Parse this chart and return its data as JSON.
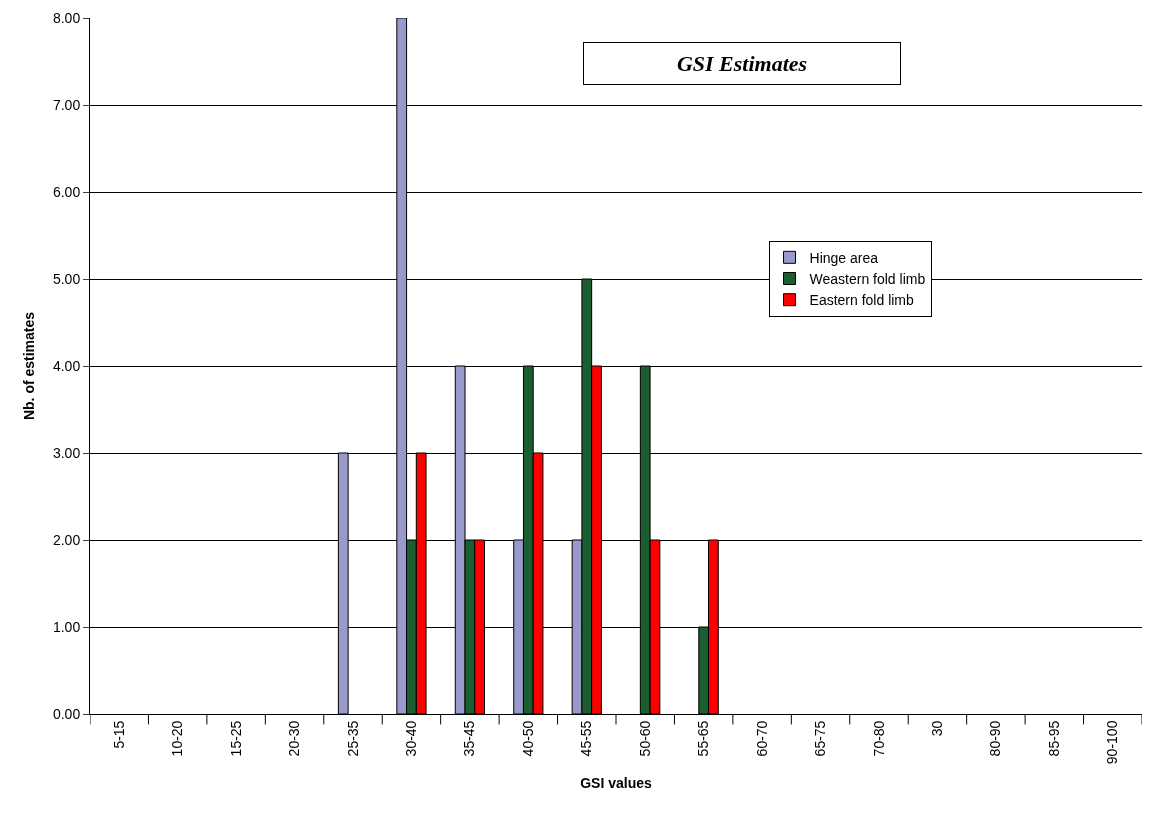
{
  "chart_data": {
    "type": "bar",
    "title": "GSI Estimates",
    "xlabel": "GSI values",
    "ylabel": "Nb. of estimates",
    "categories": [
      "5-15",
      "10-20",
      "15-25",
      "20-30",
      "25-35",
      "30-40",
      "35-45",
      "40-50",
      "45-55",
      "50-60",
      "55-65",
      "60-70",
      "65-75",
      "70-80",
      "30",
      "80-90",
      "85-95",
      "90-100"
    ],
    "series": [
      {
        "name": "Hinge area",
        "color": "#9999cc",
        "values": [
          null,
          null,
          null,
          null,
          3,
          8,
          4,
          2,
          2,
          null,
          null,
          null,
          null,
          null,
          null,
          null,
          null,
          null
        ]
      },
      {
        "name": "Weastern fold limb",
        "color": "#1b5e30",
        "values": [
          null,
          null,
          null,
          null,
          null,
          2,
          2,
          4,
          5,
          4,
          1,
          null,
          null,
          null,
          null,
          null,
          null,
          null
        ]
      },
      {
        "name": "Eastern fold limb",
        "color": "#ff0000",
        "values": [
          null,
          null,
          null,
          null,
          null,
          3,
          2,
          3,
          4,
          2,
          2,
          null,
          null,
          null,
          null,
          null,
          null,
          null
        ]
      }
    ],
    "ylim": [
      0,
      8
    ],
    "yticks": [
      {
        "value": 0,
        "label": "0.00"
      },
      {
        "value": 1,
        "label": "1.00"
      },
      {
        "value": 2,
        "label": "2.00"
      },
      {
        "value": 3,
        "label": "3.00"
      },
      {
        "value": 4,
        "label": "4.00"
      },
      {
        "value": 5,
        "label": "5.00"
      },
      {
        "value": 6,
        "label": "6.00"
      },
      {
        "value": 7,
        "label": "7.00"
      },
      {
        "value": 8,
        "label": "8.00"
      }
    ],
    "grid": "y",
    "legend": "right"
  }
}
